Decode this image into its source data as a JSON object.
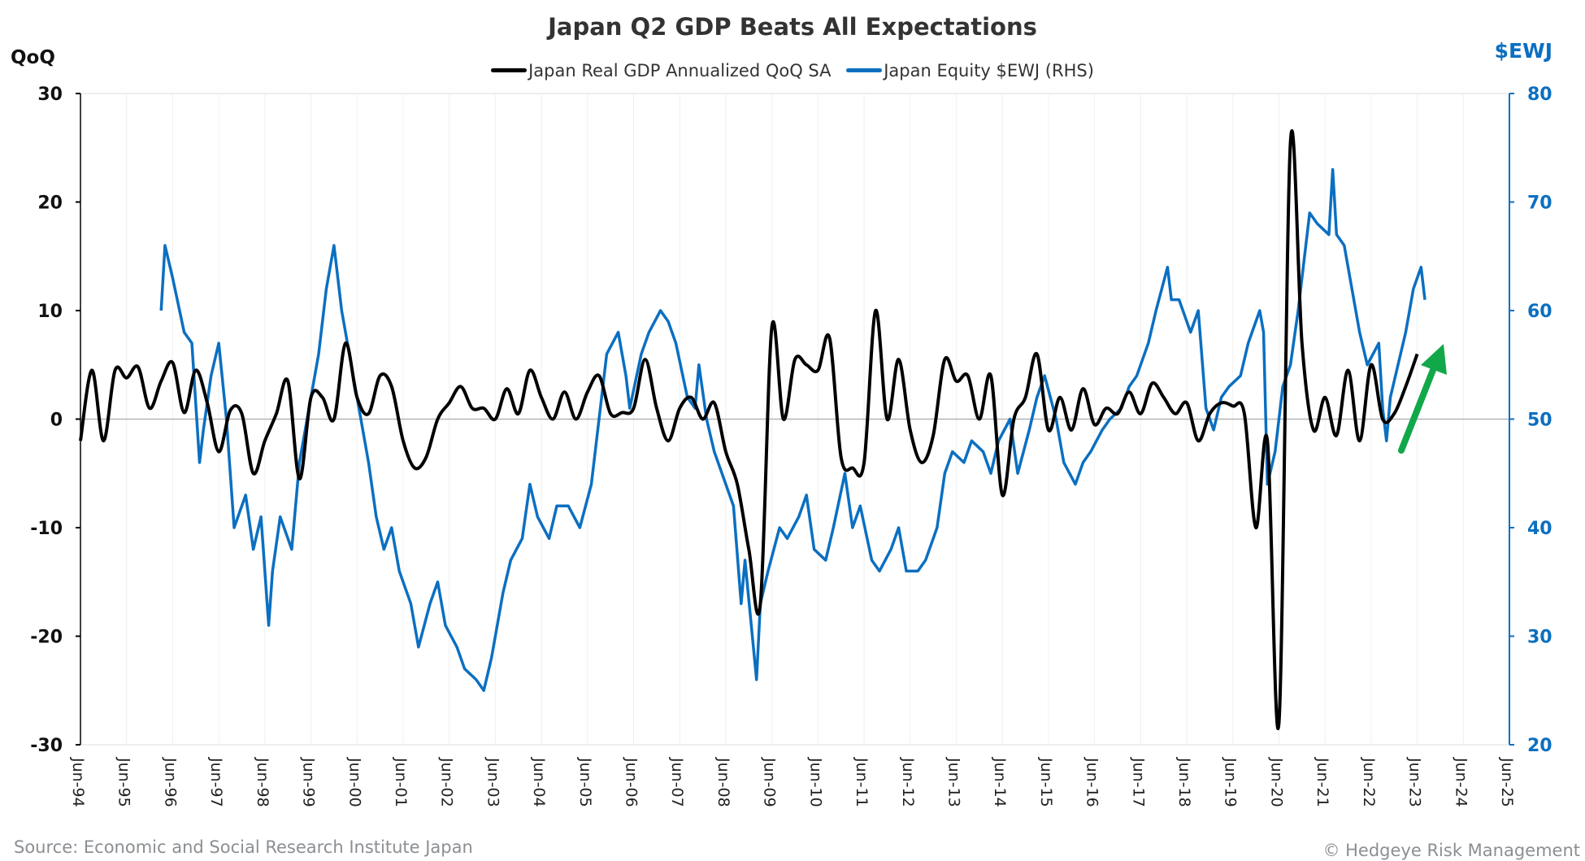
{
  "chart_data": {
    "type": "line",
    "title": "Japan Q2 GDP Beats All Expectations",
    "ylabel_left": "QoQ",
    "ylabel_right": "$EWJ",
    "ylim_left": [
      -30,
      30
    ],
    "ylim_right": [
      20,
      80
    ],
    "yticks_left": [
      "30",
      "20",
      "10",
      "0",
      "-10",
      "-20",
      "-30"
    ],
    "yticks_right": [
      "80",
      "70",
      "60",
      "50",
      "40",
      "30",
      "20"
    ],
    "xticks": [
      "Jun-94",
      "Jun-95",
      "Jun-96",
      "Jun-97",
      "Jun-98",
      "Jun-99",
      "Jun-00",
      "Jun-01",
      "Jun-02",
      "Jun-03",
      "Jun-04",
      "Jun-05",
      "Jun-06",
      "Jun-07",
      "Jun-08",
      "Jun-09",
      "Jun-10",
      "Jun-11",
      "Jun-12",
      "Jun-13",
      "Jun-14",
      "Jun-15",
      "Jun-16",
      "Jun-17",
      "Jun-18",
      "Jun-19",
      "Jun-20",
      "Jun-21",
      "Jun-22",
      "Jun-23",
      "Jun-24",
      "Jun-25"
    ],
    "xlim": [
      "1994-06",
      "2025-06"
    ],
    "grid": "vertical at ticks, zero line",
    "legend_placement": "top",
    "series": [
      {
        "name": "Japan Real GDP Annualized QoQ SA",
        "axis": "left",
        "color": "#000000",
        "points": [
          [
            "1994-06",
            -2
          ],
          [
            "1994-09",
            4.5
          ],
          [
            "1994-12",
            -2
          ],
          [
            "1995-03",
            4.5
          ],
          [
            "1995-06",
            3.8
          ],
          [
            "1995-09",
            4.8
          ],
          [
            "1995-12",
            1
          ],
          [
            "1996-03",
            3.5
          ],
          [
            "1996-06",
            5.2
          ],
          [
            "1996-09",
            0.6
          ],
          [
            "1996-12",
            4.5
          ],
          [
            "1997-03",
            1.5
          ],
          [
            "1997-06",
            -3
          ],
          [
            "1997-09",
            0.8
          ],
          [
            "1997-12",
            0.5
          ],
          [
            "1998-03",
            -5
          ],
          [
            "1998-06",
            -2
          ],
          [
            "1998-09",
            0.5
          ],
          [
            "1998-12",
            3.5
          ],
          [
            "1999-03",
            -5.5
          ],
          [
            "1999-06",
            2
          ],
          [
            "1999-09",
            2
          ],
          [
            "1999-12",
            0
          ],
          [
            "2000-03",
            7
          ],
          [
            "2000-06",
            2
          ],
          [
            "2000-09",
            0.5
          ],
          [
            "2000-12",
            4
          ],
          [
            "2001-03",
            3
          ],
          [
            "2001-06",
            -2
          ],
          [
            "2001-09",
            -4.5
          ],
          [
            "2001-12",
            -3.5
          ],
          [
            "2002-03",
            0
          ],
          [
            "2002-06",
            1.5
          ],
          [
            "2002-09",
            3
          ],
          [
            "2002-12",
            1
          ],
          [
            "2003-03",
            1
          ],
          [
            "2003-06",
            0
          ],
          [
            "2003-09",
            2.8
          ],
          [
            "2003-12",
            0.5
          ],
          [
            "2004-03",
            4.5
          ],
          [
            "2004-06",
            2
          ],
          [
            "2004-09",
            0
          ],
          [
            "2004-12",
            2.5
          ],
          [
            "2005-03",
            0
          ],
          [
            "2005-06",
            2.5
          ],
          [
            "2005-09",
            4
          ],
          [
            "2005-12",
            0.5
          ],
          [
            "2006-03",
            0.6
          ],
          [
            "2006-06",
            1
          ],
          [
            "2006-09",
            5.5
          ],
          [
            "2006-12",
            1
          ],
          [
            "2007-03",
            -2
          ],
          [
            "2007-06",
            1
          ],
          [
            "2007-09",
            2
          ],
          [
            "2007-12",
            0
          ],
          [
            "2008-03",
            1.5
          ],
          [
            "2008-06",
            -3
          ],
          [
            "2008-09",
            -6
          ],
          [
            "2008-12",
            -12
          ],
          [
            "2009-03",
            -17
          ],
          [
            "2009-06",
            8.5
          ],
          [
            "2009-09",
            0
          ],
          [
            "2009-12",
            5.5
          ],
          [
            "2010-03",
            5
          ],
          [
            "2010-06",
            4.5
          ],
          [
            "2010-09",
            7.5
          ],
          [
            "2010-12",
            -3.5
          ],
          [
            "2011-03",
            -4.5
          ],
          [
            "2011-06",
            -4
          ],
          [
            "2011-09",
            10
          ],
          [
            "2011-12",
            0
          ],
          [
            "2012-03",
            5.5
          ],
          [
            "2012-06",
            -1
          ],
          [
            "2012-09",
            -4
          ],
          [
            "2012-12",
            -1.5
          ],
          [
            "2013-03",
            5.5
          ],
          [
            "2013-06",
            3.5
          ],
          [
            "2013-09",
            4
          ],
          [
            "2013-12",
            0
          ],
          [
            "2014-03",
            4
          ],
          [
            "2014-06",
            -7
          ],
          [
            "2014-09",
            0
          ],
          [
            "2014-12",
            2
          ],
          [
            "2015-03",
            6
          ],
          [
            "2015-06",
            -1
          ],
          [
            "2015-09",
            2
          ],
          [
            "2015-12",
            -1
          ],
          [
            "2016-03",
            2.8
          ],
          [
            "2016-06",
            -0.5
          ],
          [
            "2016-09",
            1
          ],
          [
            "2016-12",
            0.5
          ],
          [
            "2017-03",
            2.5
          ],
          [
            "2017-06",
            0.5
          ],
          [
            "2017-09",
            3.3
          ],
          [
            "2017-12",
            2
          ],
          [
            "2018-03",
            0.5
          ],
          [
            "2018-06",
            1.5
          ],
          [
            "2018-09",
            -2
          ],
          [
            "2018-12",
            0.5
          ],
          [
            "2019-03",
            1.5
          ],
          [
            "2019-06",
            1.2
          ],
          [
            "2019-09",
            0.5
          ],
          [
            "2019-12",
            -10
          ],
          [
            "2020-03",
            -2
          ],
          [
            "2020-06",
            -28
          ],
          [
            "2020-09",
            25.5
          ],
          [
            "2020-12",
            7
          ],
          [
            "2021-03",
            -1
          ],
          [
            "2021-06",
            2
          ],
          [
            "2021-09",
            -1.5
          ],
          [
            "2021-12",
            4.5
          ],
          [
            "2022-03",
            -2
          ],
          [
            "2022-06",
            5
          ],
          [
            "2022-09",
            0
          ],
          [
            "2022-12",
            0.5
          ],
          [
            "2023-03",
            3
          ],
          [
            "2023-06",
            6
          ]
        ]
      },
      {
        "name": "Japan Equity $EWJ (RHS)",
        "axis": "right",
        "color": "#0b6fc1",
        "points": [
          [
            "1996-03",
            60
          ],
          [
            "1996-04",
            66
          ],
          [
            "1996-06",
            63
          ],
          [
            "1996-09",
            58
          ],
          [
            "1996-11",
            57
          ],
          [
            "1997-01",
            46
          ],
          [
            "1997-02",
            49
          ],
          [
            "1997-04",
            54
          ],
          [
            "1997-06",
            57
          ],
          [
            "1997-08",
            50
          ],
          [
            "1997-10",
            40
          ],
          [
            "1998-01",
            43
          ],
          [
            "1998-03",
            38
          ],
          [
            "1998-05",
            41
          ],
          [
            "1998-07",
            31
          ],
          [
            "1998-08",
            36
          ],
          [
            "1998-10",
            41
          ],
          [
            "1999-01",
            38
          ],
          [
            "1999-03",
            46
          ],
          [
            "1999-05",
            50
          ],
          [
            "1999-08",
            56
          ],
          [
            "1999-10",
            62
          ],
          [
            "1999-12",
            66
          ],
          [
            "2000-02",
            60
          ],
          [
            "2000-04",
            56
          ],
          [
            "2000-07",
            50
          ],
          [
            "2000-09",
            46
          ],
          [
            "2000-11",
            41
          ],
          [
            "2001-01",
            38
          ],
          [
            "2001-03",
            40
          ],
          [
            "2001-05",
            36
          ],
          [
            "2001-08",
            33
          ],
          [
            "2001-10",
            29
          ],
          [
            "2002-01",
            33
          ],
          [
            "2002-03",
            35
          ],
          [
            "2002-05",
            31
          ],
          [
            "2002-08",
            29
          ],
          [
            "2002-10",
            27
          ],
          [
            "2003-01",
            26
          ],
          [
            "2003-03",
            25
          ],
          [
            "2003-05",
            28
          ],
          [
            "2003-08",
            34
          ],
          [
            "2003-10",
            37
          ],
          [
            "2004-01",
            39
          ],
          [
            "2004-03",
            44
          ],
          [
            "2004-05",
            41
          ],
          [
            "2004-08",
            39
          ],
          [
            "2004-10",
            42
          ],
          [
            "2005-01",
            42
          ],
          [
            "2005-04",
            40
          ],
          [
            "2005-07",
            44
          ],
          [
            "2005-09",
            50
          ],
          [
            "2005-11",
            56
          ],
          [
            "2006-02",
            58
          ],
          [
            "2006-04",
            54
          ],
          [
            "2006-05",
            51
          ],
          [
            "2006-08",
            56
          ],
          [
            "2006-10",
            58
          ],
          [
            "2007-01",
            60
          ],
          [
            "2007-03",
            59
          ],
          [
            "2007-05",
            57
          ],
          [
            "2007-08",
            52
          ],
          [
            "2007-10",
            51
          ],
          [
            "2007-11",
            55
          ],
          [
            "2008-01",
            50
          ],
          [
            "2008-03",
            47
          ],
          [
            "2008-05",
            45
          ],
          [
            "2008-08",
            42
          ],
          [
            "2008-10",
            33
          ],
          [
            "2008-11",
            37
          ],
          [
            "2009-02",
            26
          ],
          [
            "2009-03",
            33
          ],
          [
            "2009-05",
            36
          ],
          [
            "2009-08",
            40
          ],
          [
            "2009-10",
            39
          ],
          [
            "2010-01",
            41
          ],
          [
            "2010-03",
            43
          ],
          [
            "2010-05",
            38
          ],
          [
            "2010-08",
            37
          ],
          [
            "2010-10",
            40
          ],
          [
            "2011-01",
            45
          ],
          [
            "2011-03",
            40
          ],
          [
            "2011-05",
            42
          ],
          [
            "2011-08",
            37
          ],
          [
            "2011-10",
            36
          ],
          [
            "2012-01",
            38
          ],
          [
            "2012-03",
            40
          ],
          [
            "2012-05",
            36
          ],
          [
            "2012-08",
            36
          ],
          [
            "2012-10",
            37
          ],
          [
            "2013-01",
            40
          ],
          [
            "2013-03",
            45
          ],
          [
            "2013-05",
            47
          ],
          [
            "2013-08",
            46
          ],
          [
            "2013-10",
            48
          ],
          [
            "2014-01",
            47
          ],
          [
            "2014-03",
            45
          ],
          [
            "2014-05",
            48
          ],
          [
            "2014-08",
            50
          ],
          [
            "2014-10",
            45
          ],
          [
            "2015-01",
            49
          ],
          [
            "2015-03",
            52
          ],
          [
            "2015-05",
            54
          ],
          [
            "2015-08",
            50
          ],
          [
            "2015-10",
            46
          ],
          [
            "2016-01",
            44
          ],
          [
            "2016-03",
            46
          ],
          [
            "2016-05",
            47
          ],
          [
            "2016-08",
            49
          ],
          [
            "2016-10",
            50
          ],
          [
            "2017-01",
            51
          ],
          [
            "2017-03",
            53
          ],
          [
            "2017-05",
            54
          ],
          [
            "2017-08",
            57
          ],
          [
            "2017-10",
            60
          ],
          [
            "2018-01",
            64
          ],
          [
            "2018-02",
            61
          ],
          [
            "2018-04",
            61
          ],
          [
            "2018-07",
            58
          ],
          [
            "2018-09",
            60
          ],
          [
            "2018-11",
            51
          ],
          [
            "2019-01",
            49
          ],
          [
            "2019-03",
            52
          ],
          [
            "2019-05",
            53
          ],
          [
            "2019-08",
            54
          ],
          [
            "2019-10",
            57
          ],
          [
            "2020-01",
            60
          ],
          [
            "2020-02",
            58
          ],
          [
            "2020-03",
            44
          ],
          [
            "2020-05",
            47
          ],
          [
            "2020-07",
            53
          ],
          [
            "2020-09",
            55
          ],
          [
            "2020-11",
            60
          ],
          [
            "2021-01",
            66
          ],
          [
            "2021-02",
            69
          ],
          [
            "2021-04",
            68
          ],
          [
            "2021-07",
            67
          ],
          [
            "2021-08",
            73
          ],
          [
            "2021-09",
            67
          ],
          [
            "2021-11",
            66
          ],
          [
            "2022-01",
            62
          ],
          [
            "2022-03",
            58
          ],
          [
            "2022-05",
            55
          ],
          [
            "2022-08",
            57
          ],
          [
            "2022-09",
            51
          ],
          [
            "2022-10",
            48
          ],
          [
            "2022-11",
            52
          ],
          [
            "2023-01",
            55
          ],
          [
            "2023-03",
            58
          ],
          [
            "2023-05",
            62
          ],
          [
            "2023-07",
            64
          ],
          [
            "2023-08",
            61
          ]
        ]
      }
    ],
    "annotations": [
      {
        "type": "arrow",
        "color": "#12a84a",
        "direction": "up"
      }
    ]
  },
  "footer": {
    "source": "Source: Economic and Social Research Institute Japan",
    "copyright": "© Hedgeye Risk Management"
  }
}
